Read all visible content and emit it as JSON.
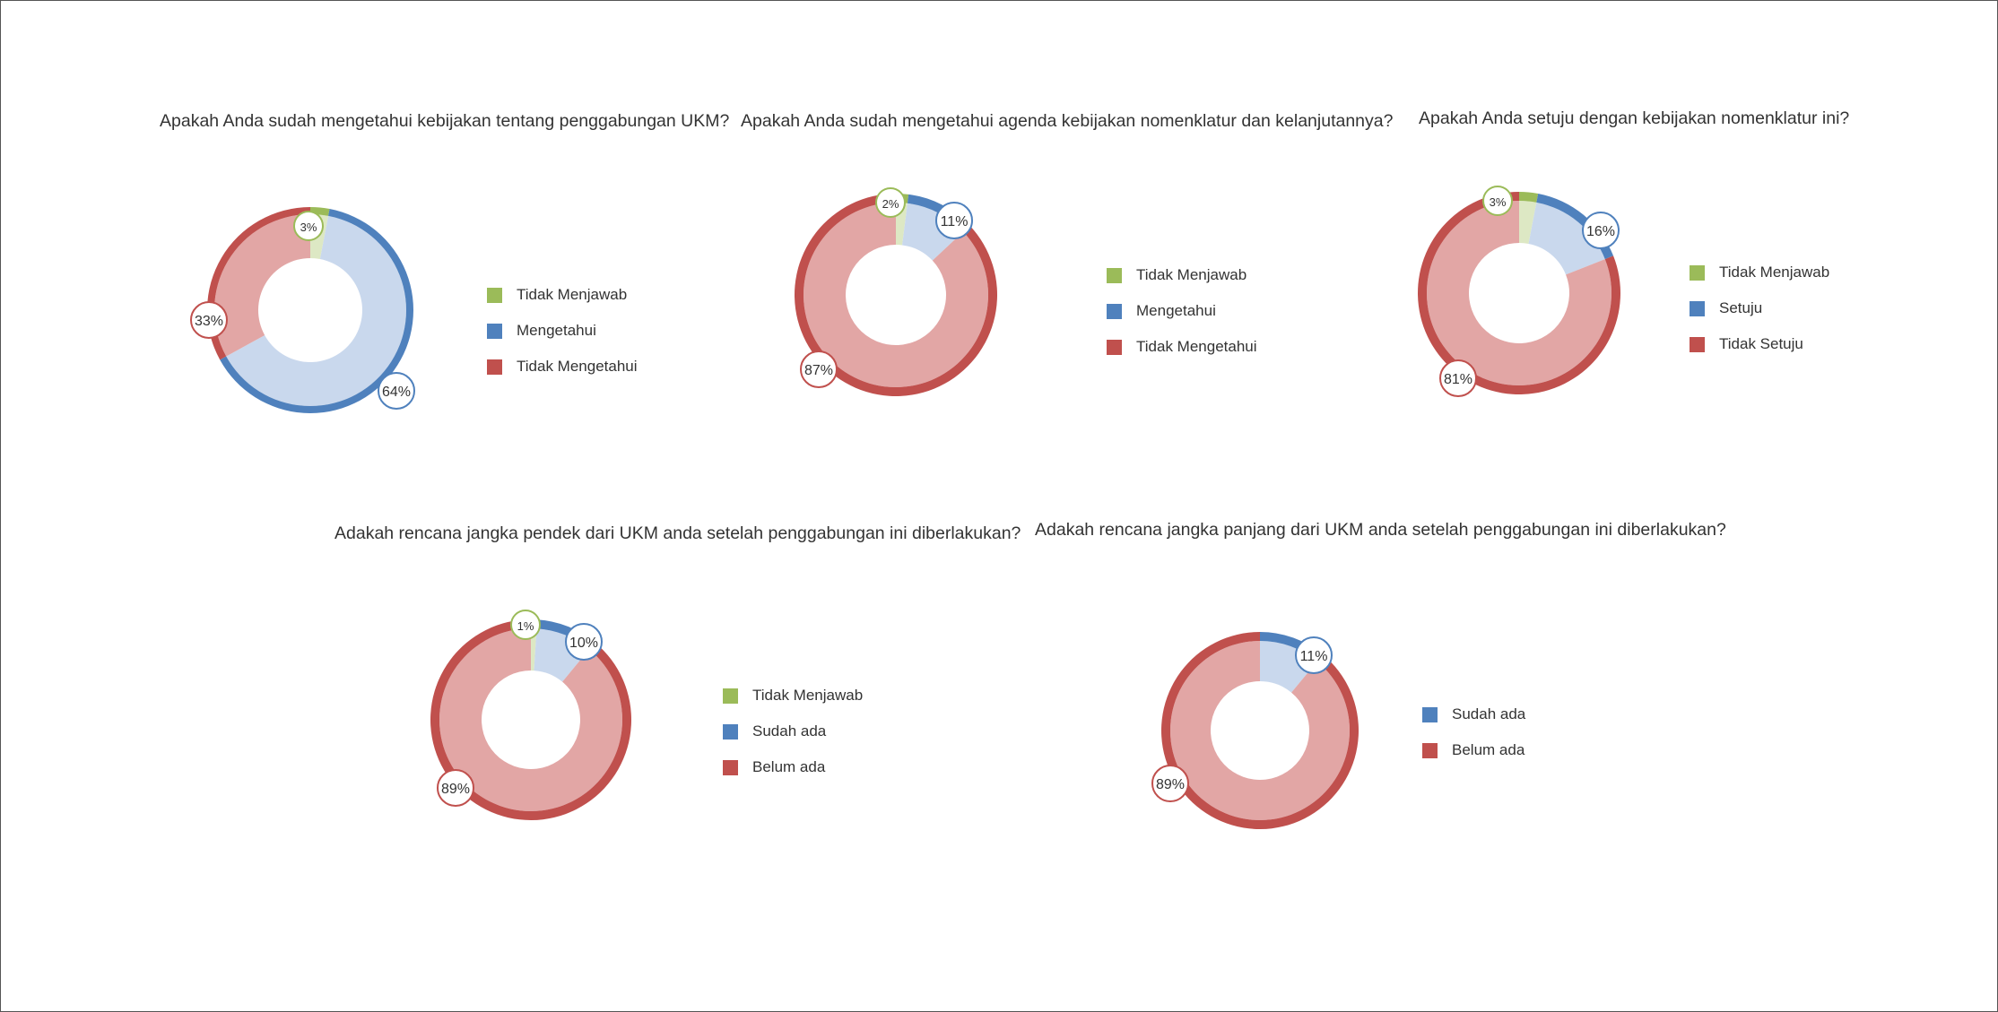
{
  "colors": {
    "green": "#9bbb59",
    "blue": "#4f81bd",
    "red": "#c0504d"
  },
  "chart_data": [
    {
      "type": "pie",
      "variant": "donut",
      "title": "Apakah Anda sudah mengetahui kebijakan tentang penggabungan UKM?",
      "slices": [
        {
          "label": "Tidak Menjawab",
          "value": 3,
          "color": "green"
        },
        {
          "label": "Mengetahui",
          "value": 64,
          "color": "blue"
        },
        {
          "label": "Tidak Mengetahui",
          "value": 33,
          "color": "red"
        }
      ],
      "data_labels": [
        "3%",
        "64%",
        "33%"
      ],
      "legend_position": "right"
    },
    {
      "type": "pie",
      "variant": "donut",
      "title": "Apakah Anda sudah mengetahui agenda kebijakan nomenklatur dan kelanjutannya?",
      "slices": [
        {
          "label": "Tidak Menjawab",
          "value": 2,
          "color": "green"
        },
        {
          "label": "Mengetahui",
          "value": 11,
          "color": "blue"
        },
        {
          "label": "Tidak Mengetahui",
          "value": 87,
          "color": "red"
        }
      ],
      "data_labels": [
        "2%",
        "11%",
        "87%"
      ],
      "legend_position": "right"
    },
    {
      "type": "pie",
      "variant": "donut",
      "title": "Apakah Anda setuju dengan kebijakan nomenklatur ini?",
      "slices": [
        {
          "label": "Tidak Menjawab",
          "value": 3,
          "color": "green"
        },
        {
          "label": "Setuju",
          "value": 16,
          "color": "blue"
        },
        {
          "label": "Tidak Setuju",
          "value": 81,
          "color": "red"
        }
      ],
      "data_labels": [
        "3%",
        "16%",
        "81%"
      ],
      "legend_position": "right"
    },
    {
      "type": "pie",
      "variant": "donut",
      "title": "Adakah rencana jangka pendek dari UKM anda setelah penggabungan ini diberlakukan?",
      "slices": [
        {
          "label": "Tidak Menjawab",
          "value": 1,
          "color": "green"
        },
        {
          "label": "Sudah ada",
          "value": 10,
          "color": "blue"
        },
        {
          "label": "Belum ada",
          "value": 89,
          "color": "red"
        }
      ],
      "data_labels": [
        "1%",
        "10%",
        "89%"
      ],
      "legend_position": "right"
    },
    {
      "type": "pie",
      "variant": "donut",
      "title": "Adakah rencana jangka panjang dari UKM anda setelah penggabungan ini diberlakukan?",
      "slices": [
        {
          "label": "Sudah ada",
          "value": 11,
          "color": "blue"
        },
        {
          "label": "Belum ada",
          "value": 89,
          "color": "red"
        }
      ],
      "data_labels": [
        "11%",
        "89%"
      ],
      "legend_position": "right"
    }
  ]
}
